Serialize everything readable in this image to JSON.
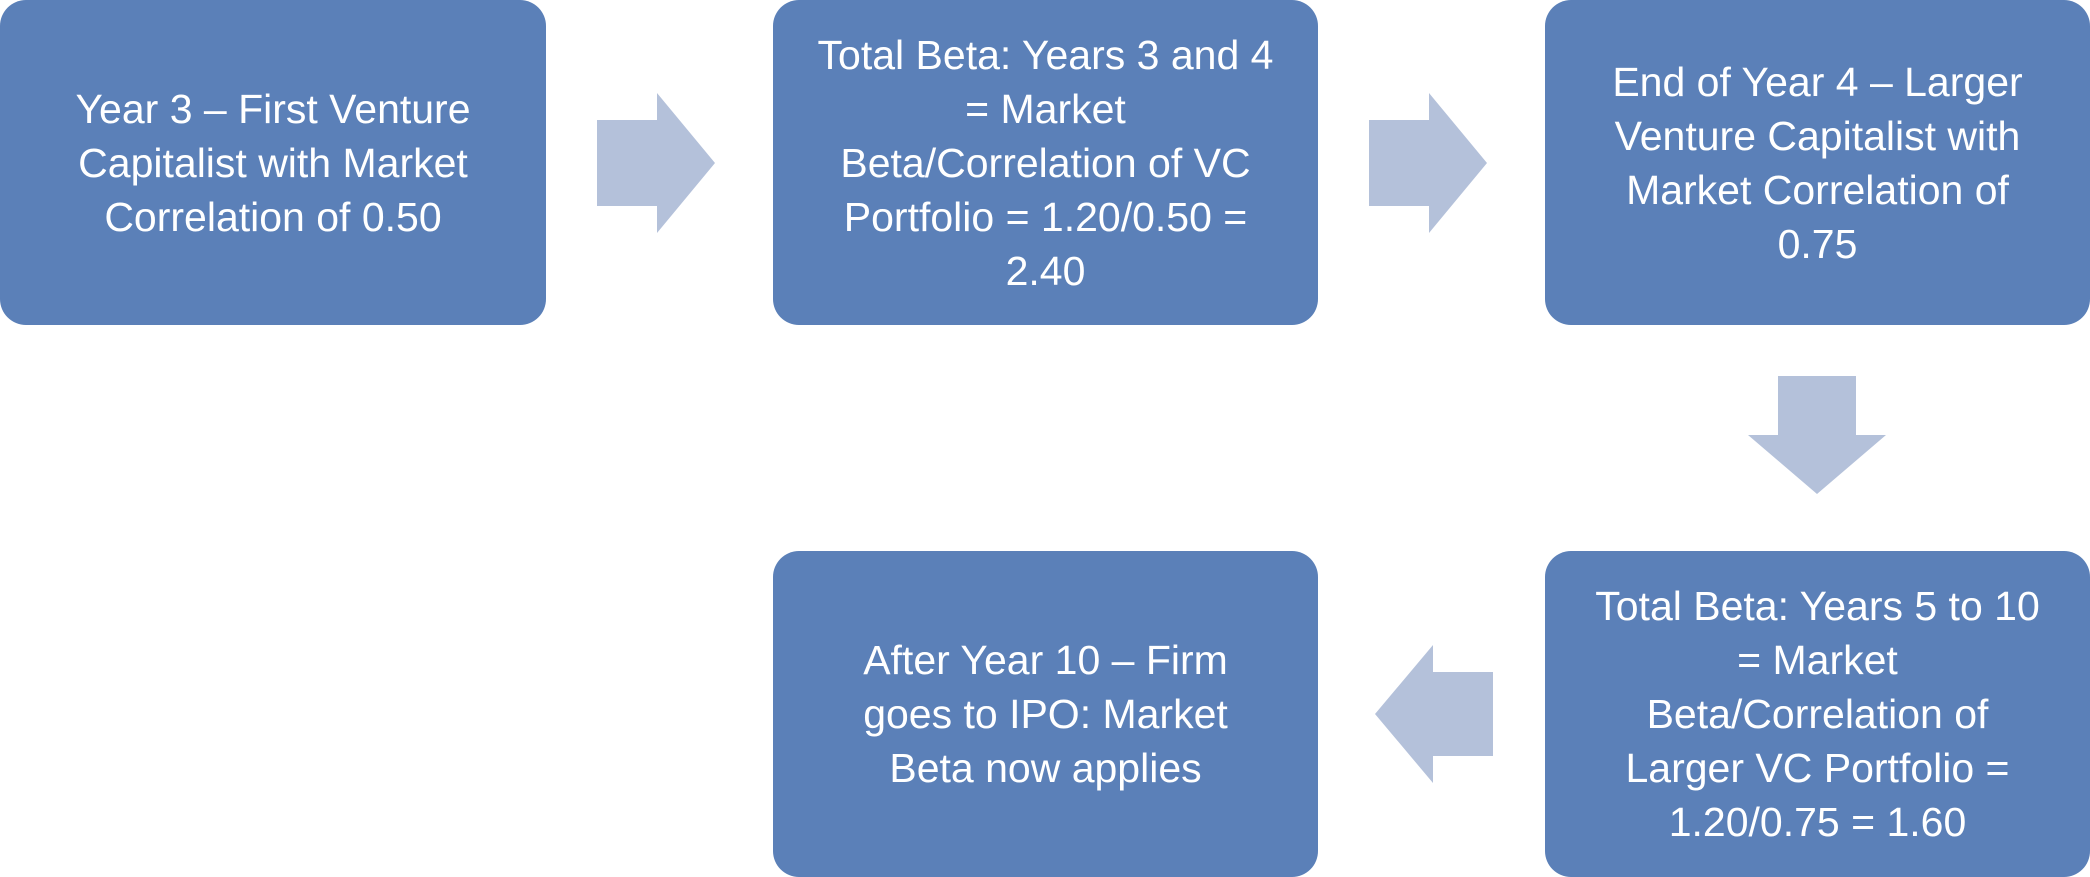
{
  "colors": {
    "node_fill": "#5b80b8",
    "node_text": "#ffffff",
    "arrow_fill": "#b4c1da"
  },
  "nodes": {
    "n1": {
      "lines": [
        "Year 3 – First Venture",
        "Capitalist with Market",
        "Correlation of 0.50"
      ]
    },
    "n2": {
      "lines": [
        "Total Beta: Years 3 and 4",
        "= Market",
        "Beta/Correlation of VC",
        "Portfolio = 1.20/0.50 =",
        "2.40"
      ]
    },
    "n3": {
      "lines": [
        "End of Year 4 – Larger",
        "Venture Capitalist with",
        "Market Correlation of",
        "0.75"
      ]
    },
    "n4": {
      "lines": [
        "Total Beta: Years 5 to 10",
        "= Market",
        "Beta/Correlation of",
        "Larger VC Portfolio =",
        "1.20/0.75 = 1.60"
      ]
    },
    "n5": {
      "lines": [
        "After Year 10 – Firm",
        "goes to IPO: Market",
        "Beta now applies"
      ]
    }
  },
  "arrows": [
    "right",
    "right",
    "down",
    "left"
  ]
}
